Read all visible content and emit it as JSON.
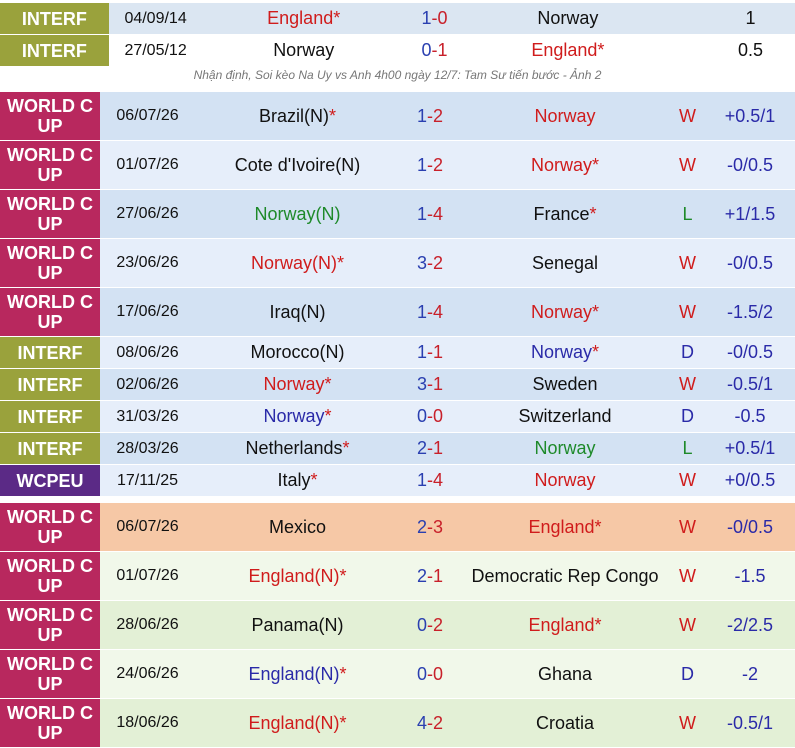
{
  "head_to_head": {
    "rows": [
      {
        "comp": "INTERF",
        "date": "04/09/14",
        "home": "England*",
        "home_color": "#d01c1c",
        "score": "1-0",
        "away": "Norway",
        "away_color": "#111111",
        "handicap": "1",
        "row_color": "#dbe6f2"
      },
      {
        "comp": "INTERF",
        "date": "27/05/12",
        "home": "Norway",
        "home_color": "#111111",
        "score": "0-1",
        "away": "England*",
        "away_color": "#d01c1c",
        "handicap": "0.5",
        "row_color": "#ffffff"
      }
    ]
  },
  "caption": "Nhận định, Soi kèo Na Uy vs Anh 4h00 ngày 12/7: Tam Sư tiến bước - Ảnh 2",
  "norway_form": {
    "rows": [
      {
        "comp": "WORLD CUP",
        "comp_color": "#b8285e",
        "date": "06/07/26",
        "home": "Brazil(N)*",
        "home_color": "#111111",
        "score": "1-2",
        "away": "Norway",
        "away_color": "#d01c1c",
        "result": "W",
        "result_color": "#d01c1c",
        "handicap": "+0.5/1",
        "row_color": "#d3e2f3"
      },
      {
        "comp": "WORLD CUP",
        "comp_color": "#b8285e",
        "date": "01/07/26",
        "home": "Cote d'Ivoire(N)",
        "home_color": "#111111",
        "score": "1-2",
        "away": "Norway*",
        "away_color": "#d01c1c",
        "result": "W",
        "result_color": "#d01c1c",
        "handicap": "-0/0.5",
        "row_color": "#e6eefa"
      },
      {
        "comp": "WORLD CUP",
        "comp_color": "#b8285e",
        "date": "27/06/26",
        "home": "Norway(N)",
        "home_color": "#1e8a2a",
        "score": "1-4",
        "away": "France*",
        "away_color": "#111111",
        "result": "L",
        "result_color": "#1e8a2a",
        "handicap": "+1/1.5",
        "row_color": "#d3e2f3"
      },
      {
        "comp": "WORLD CUP",
        "comp_color": "#b8285e",
        "date": "23/06/26",
        "home": "Norway(N)*",
        "home_color": "#d01c1c",
        "score": "3-2",
        "away": "Senegal",
        "away_color": "#111111",
        "result": "W",
        "result_color": "#d01c1c",
        "handicap": "-0/0.5",
        "row_color": "#e6eefa"
      },
      {
        "comp": "WORLD CUP",
        "comp_color": "#b8285e",
        "date": "17/06/26",
        "home": "Iraq(N)",
        "home_color": "#111111",
        "score": "1-4",
        "away": "Norway*",
        "away_color": "#d01c1c",
        "result": "W",
        "result_color": "#d01c1c",
        "handicap": "-1.5/2",
        "row_color": "#d3e2f3"
      },
      {
        "comp": "INTERF",
        "comp_color": "#9aa23c",
        "date": "08/06/26",
        "home": "Morocco(N)",
        "home_color": "#111111",
        "score": "1-1",
        "away": "Norway*",
        "away_color": "#2a2aa8",
        "result": "D",
        "result_color": "#2a2aa8",
        "handicap": "-0/0.5",
        "row_color": "#e6eefa"
      },
      {
        "comp": "INTERF",
        "comp_color": "#9aa23c",
        "date": "02/06/26",
        "home": "Norway*",
        "home_color": "#d01c1c",
        "score": "3-1",
        "away": "Sweden",
        "away_color": "#111111",
        "result": "W",
        "result_color": "#d01c1c",
        "handicap": "-0.5/1",
        "row_color": "#d3e2f3"
      },
      {
        "comp": "INTERF",
        "comp_color": "#9aa23c",
        "date": "31/03/26",
        "home": "Norway*",
        "home_color": "#2a2aa8",
        "score": "0-0",
        "away": "Switzerland",
        "away_color": "#111111",
        "result": "D",
        "result_color": "#2a2aa8",
        "handicap": "-0.5",
        "row_color": "#e6eefa"
      },
      {
        "comp": "INTERF",
        "comp_color": "#9aa23c",
        "date": "28/03/26",
        "home": "Netherlands*",
        "home_color": "#111111",
        "score": "2-1",
        "away": "Norway",
        "away_color": "#1e8a2a",
        "result": "L",
        "result_color": "#1e8a2a",
        "handicap": "+0.5/1",
        "row_color": "#d3e2f3"
      },
      {
        "comp": "WCPEU",
        "comp_color": "#5b2a86",
        "date": "17/11/25",
        "home": "Italy*",
        "home_color": "#111111",
        "score": "1-4",
        "away": "Norway",
        "away_color": "#d01c1c",
        "result": "W",
        "result_color": "#d01c1c",
        "handicap": "+0/0.5",
        "row_color": "#e6eefa"
      }
    ]
  },
  "england_form": {
    "rows": [
      {
        "comp": "WORLD CUP",
        "comp_color": "#b8285e",
        "date": "06/07/26",
        "home": "Mexico",
        "home_color": "#111111",
        "score": "2-3",
        "away": "England*",
        "away_color": "#d01c1c",
        "result": "W",
        "result_color": "#d01c1c",
        "handicap": "-0/0.5",
        "row_color": "#f6c8a6"
      },
      {
        "comp": "WORLD CUP",
        "comp_color": "#b8285e",
        "date": "01/07/26",
        "home": "England(N)*",
        "home_color": "#d01c1c",
        "score": "2-1",
        "away": "Democratic Rep Congo",
        "away_color": "#111111",
        "result": "W",
        "result_color": "#d01c1c",
        "handicap": "-1.5",
        "row_color": "#f1f8ea"
      },
      {
        "comp": "WORLD CUP",
        "comp_color": "#b8285e",
        "date": "28/06/26",
        "home": "Panama(N)",
        "home_color": "#111111",
        "score": "0-2",
        "away": "England*",
        "away_color": "#d01c1c",
        "result": "W",
        "result_color": "#d01c1c",
        "handicap": "-2/2.5",
        "row_color": "#e3f0d6"
      },
      {
        "comp": "WORLD CUP",
        "comp_color": "#b8285e",
        "date": "24/06/26",
        "home": "England(N)*",
        "home_color": "#2a2aa8",
        "score": "0-0",
        "away": "Ghana",
        "away_color": "#111111",
        "result": "D",
        "result_color": "#2a2aa8",
        "handicap": "-2",
        "row_color": "#f1f8ea"
      },
      {
        "comp": "WORLD CUP",
        "comp_color": "#b8285e",
        "date": "18/06/26",
        "home": "England(N)*",
        "home_color": "#d01c1c",
        "score": "4-2",
        "away": "Croatia",
        "away_color": "#111111",
        "result": "W",
        "result_color": "#d01c1c",
        "handicap": "-0.5/1",
        "row_color": "#e3f0d6"
      }
    ]
  }
}
